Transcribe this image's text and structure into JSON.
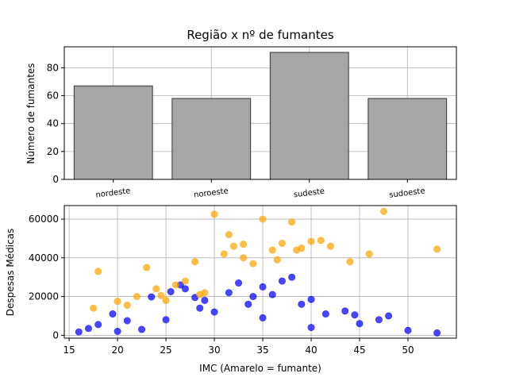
{
  "chart_data": [
    {
      "type": "bar",
      "title": "Região x nº de fumantes",
      "xlabel": "",
      "ylabel": "Número de fumantes",
      "categories": [
        "nordeste",
        "noroeste",
        "sudeste",
        "sudoeste"
      ],
      "values": [
        67,
        58,
        91,
        58
      ],
      "ylim": [
        0,
        95
      ],
      "yticks": [
        0,
        20,
        40,
        60,
        80
      ],
      "grid": true,
      "bar_color": "#a6a6a6",
      "edge_color": "#333333"
    },
    {
      "type": "scatter",
      "title": "",
      "xlabel": "IMC (Amarelo = fumante)",
      "ylabel": "Despesas Médicas",
      "xlim": [
        14.5,
        55
      ],
      "ylim": [
        -1500,
        67000
      ],
      "xticks": [
        15,
        20,
        25,
        30,
        35,
        40,
        45,
        50
      ],
      "yticks": [
        0,
        20000,
        40000,
        60000
      ],
      "grid": true,
      "series": [
        {
          "color": "#0000ff",
          "points": [
            [
              16.0,
              1700
            ],
            [
              17.0,
              3500
            ],
            [
              18.0,
              5500
            ],
            [
              19.5,
              11000
            ],
            [
              21.0,
              7500
            ],
            [
              23.5,
              19800
            ],
            [
              25.5,
              22500
            ],
            [
              26.5,
              26000
            ],
            [
              27.0,
              24000
            ],
            [
              28.0,
              19500
            ],
            [
              29.0,
              18000
            ],
            [
              31.5,
              22000
            ],
            [
              32.5,
              27000
            ],
            [
              34.0,
              20000
            ],
            [
              35.0,
              25000
            ],
            [
              36.0,
              21000
            ],
            [
              37.0,
              28000
            ],
            [
              38.0,
              30000
            ],
            [
              39.0,
              16000
            ],
            [
              40.0,
              18500
            ],
            [
              41.5,
              11000
            ],
            [
              43.5,
              12500
            ],
            [
              44.5,
              10500
            ],
            [
              47.0,
              8000
            ],
            [
              48.0,
              10000
            ],
            [
              50.0,
              2500
            ],
            [
              53.0,
              1200
            ],
            [
              20.0,
              2000
            ],
            [
              25.0,
              8000
            ],
            [
              30.0,
              12000
            ],
            [
              35.0,
              9000
            ],
            [
              40.0,
              4000
            ],
            [
              45.0,
              6000
            ],
            [
              28.5,
              14000
            ],
            [
              33.5,
              16000
            ],
            [
              22.5,
              3000
            ]
          ]
        },
        {
          "color": "#ffa500",
          "points": [
            [
              17.5,
              14000
            ],
            [
              18.0,
              33000
            ],
            [
              20.0,
              17500
            ],
            [
              21.0,
              15500
            ],
            [
              22.0,
              20000
            ],
            [
              23.0,
              35000
            ],
            [
              24.0,
              24000
            ],
            [
              25.0,
              18000
            ],
            [
              26.0,
              26000
            ],
            [
              27.0,
              28000
            ],
            [
              28.0,
              38000
            ],
            [
              29.0,
              22000
            ],
            [
              30.0,
              62500
            ],
            [
              31.0,
              42000
            ],
            [
              32.0,
              46000
            ],
            [
              33.0,
              40000
            ],
            [
              34.0,
              37000
            ],
            [
              35.0,
              60000
            ],
            [
              36.0,
              44000
            ],
            [
              37.0,
              47500
            ],
            [
              38.0,
              58500
            ],
            [
              39.0,
              45000
            ],
            [
              40.0,
              48500
            ],
            [
              41.0,
              49000
            ],
            [
              42.0,
              46000
            ],
            [
              44.0,
              38000
            ],
            [
              46.0,
              42000
            ],
            [
              47.5,
              64000
            ],
            [
              53.0,
              44500
            ],
            [
              31.5,
              52000
            ],
            [
              36.5,
              39000
            ],
            [
              28.5,
              21000
            ],
            [
              24.5,
              20500
            ],
            [
              33.0,
              47000
            ],
            [
              38.5,
              44000
            ]
          ]
        }
      ]
    }
  ]
}
